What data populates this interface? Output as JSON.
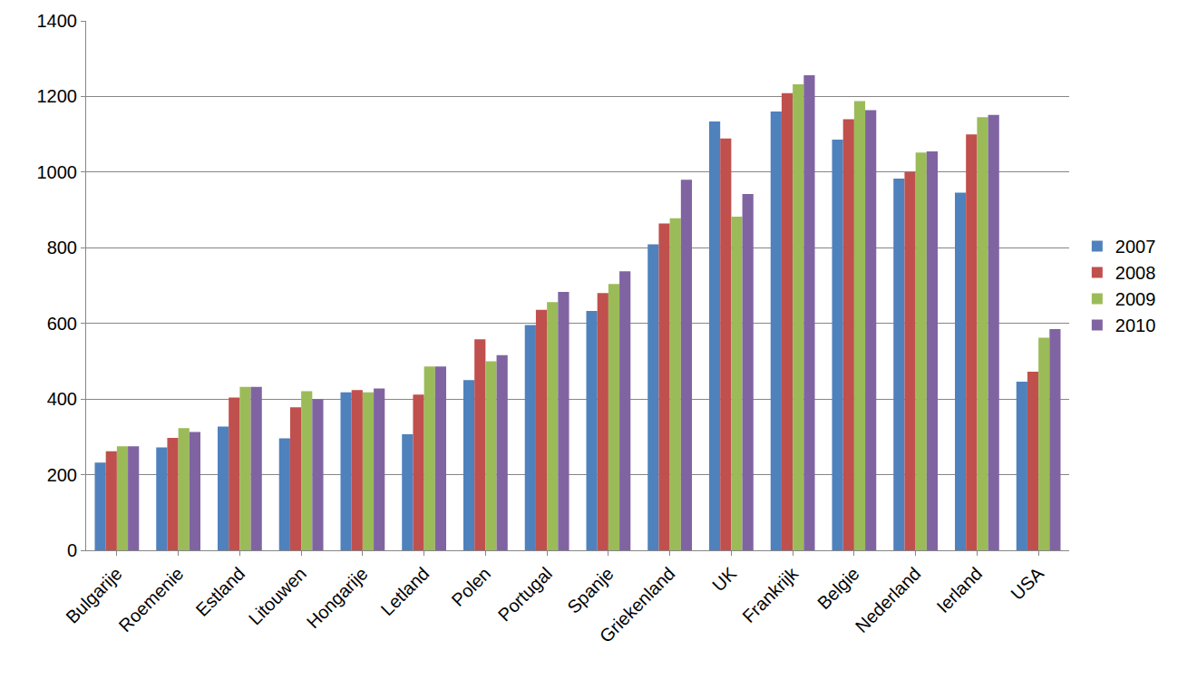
{
  "chart_data": {
    "type": "bar",
    "categories": [
      "Bulgarije",
      "Roemenie",
      "Estland",
      "Litouwen",
      "Hongarije",
      "Letland",
      "Polen",
      "Portugal",
      "Spanje",
      "Griekenland",
      "UK",
      "Frankrijk",
      "Belgie",
      "Nederland",
      "Ierland",
      "USA"
    ],
    "series": [
      {
        "name": "2007",
        "color": "#4F81BD",
        "values": [
          232,
          272,
          327,
          296,
          418,
          307,
          450,
          596,
          633,
          809,
          1134,
          1160,
          1086,
          983,
          946,
          446
        ]
      },
      {
        "name": "2008",
        "color": "#C0504D",
        "values": [
          262,
          297,
          404,
          378,
          424,
          412,
          558,
          636,
          680,
          864,
          1089,
          1209,
          1140,
          1000,
          1100,
          472
        ]
      },
      {
        "name": "2009",
        "color": "#9BBB59",
        "values": [
          275,
          323,
          432,
          421,
          418,
          486,
          500,
          656,
          704,
          878,
          882,
          1232,
          1188,
          1052,
          1145,
          562
        ]
      },
      {
        "name": "2010",
        "color": "#8064A2",
        "values": [
          275,
          313,
          432,
          400,
          428,
          486,
          516,
          683,
          738,
          980,
          942,
          1256,
          1164,
          1055,
          1151,
          585
        ]
      }
    ],
    "ylim": [
      0,
      1400
    ],
    "yticks": [
      0,
      200,
      400,
      600,
      800,
      1000,
      1200,
      1400
    ],
    "grid": true,
    "legend": "right"
  }
}
